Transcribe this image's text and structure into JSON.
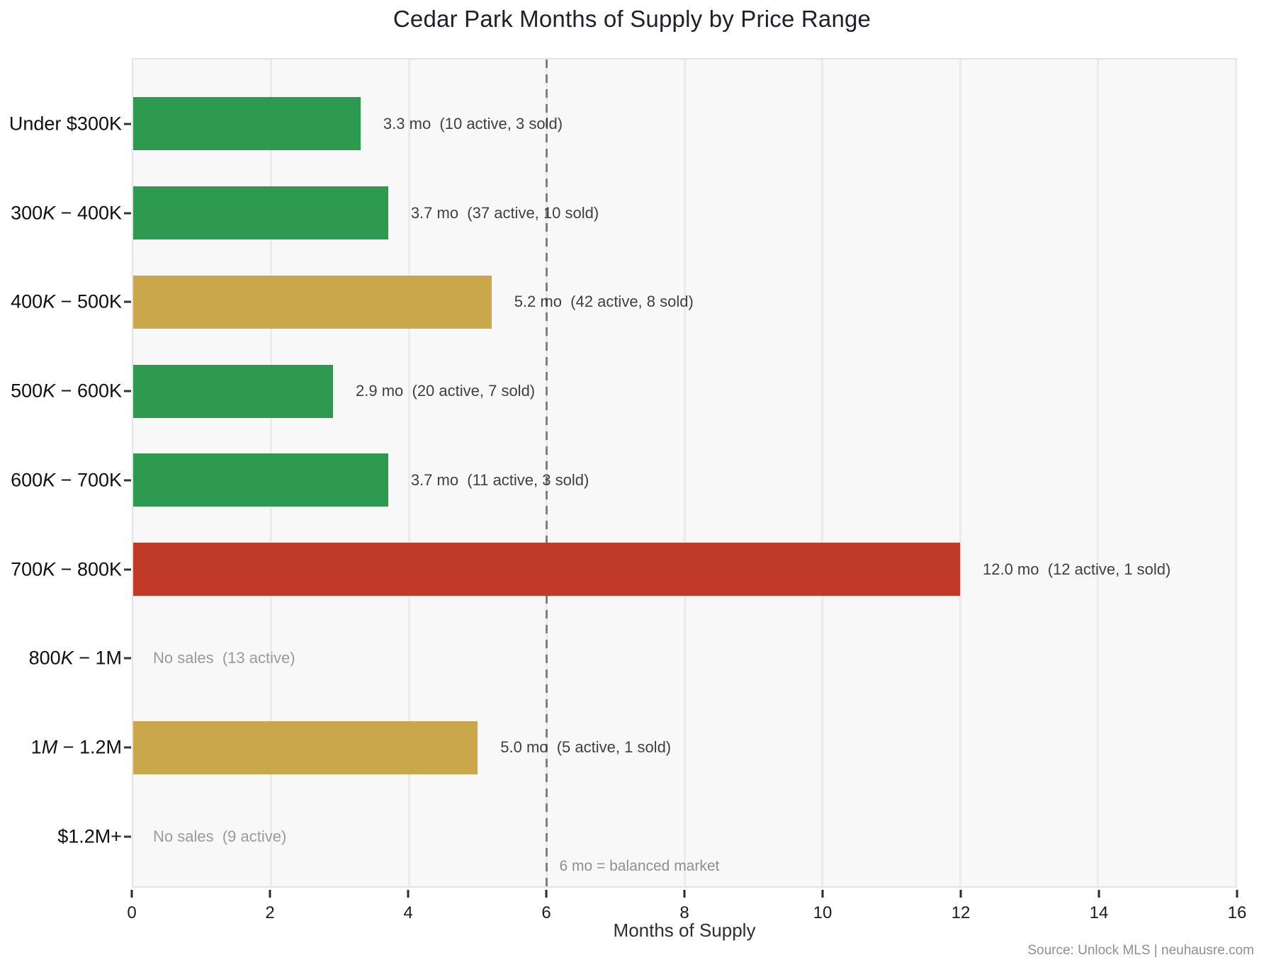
{
  "title": "Cedar Park Months of Supply by Price Range",
  "x_axis": {
    "label": "Months of Supply",
    "ticks": [
      0,
      2,
      4,
      6,
      8,
      10,
      12,
      14,
      16
    ],
    "max": 16
  },
  "reference": {
    "x": 6,
    "note": "6 mo = balanced market"
  },
  "source": "Source: Unlock MLS | neuhausre.com",
  "colors": {
    "green": "#2e9a50",
    "gold": "#c9a74a",
    "red": "#c13a28",
    "annotation_text": "#3f3f3f",
    "no_sales_text": "#9a9a9a",
    "reference_line": "#7f7f7f",
    "panel_background": "#f8f8f9",
    "gridline": "#ebebee"
  },
  "chart_data": {
    "type": "bar",
    "orientation": "horizontal",
    "title": "Cedar Park Months of Supply by Price Range",
    "xlabel": "Months of Supply",
    "xlim": [
      0,
      16
    ],
    "grid": true,
    "reference_line_x": 6,
    "categories": [
      "Under $300K",
      "300K − 400K",
      "400K − 500K",
      "500K − 600K",
      "600K − 700K",
      "700K − 800K",
      "800K − 1M",
      "1M − 1.2M",
      "$1.2M+"
    ],
    "values": [
      3.3,
      3.7,
      5.2,
      2.9,
      3.7,
      12.0,
      null,
      5.0,
      null
    ],
    "active_listings": [
      10,
      37,
      42,
      20,
      11,
      12,
      13,
      5,
      9
    ],
    "sold": [
      3,
      10,
      8,
      7,
      3,
      1,
      0,
      1,
      0
    ],
    "rows": [
      {
        "label": "Under $300K",
        "label_segments": [
          {
            "text": "Under $300K"
          }
        ],
        "value": 3.3,
        "active": 10,
        "sold": 3,
        "annotation": "3.3 mo  (10 active, 3 sold)",
        "color": "green"
      },
      {
        "label": "300K − 400K",
        "label_segments": [
          {
            "text": "300"
          },
          {
            "text": "K",
            "italic": true
          },
          {
            "text": " − "
          },
          {
            "text": "400K"
          }
        ],
        "value": 3.7,
        "active": 37,
        "sold": 10,
        "annotation": "3.7 mo  (37 active, 10 sold)",
        "color": "green"
      },
      {
        "label": "400K − 500K",
        "label_segments": [
          {
            "text": "400"
          },
          {
            "text": "K",
            "italic": true
          },
          {
            "text": " − "
          },
          {
            "text": "500K"
          }
        ],
        "value": 5.2,
        "active": 42,
        "sold": 8,
        "annotation": "5.2 mo  (42 active, 8 sold)",
        "color": "gold"
      },
      {
        "label": "500K − 600K",
        "label_segments": [
          {
            "text": "500"
          },
          {
            "text": "K",
            "italic": true
          },
          {
            "text": " − "
          },
          {
            "text": "600K"
          }
        ],
        "value": 2.9,
        "active": 20,
        "sold": 7,
        "annotation": "2.9 mo  (20 active, 7 sold)",
        "color": "green"
      },
      {
        "label": "600K − 700K",
        "label_segments": [
          {
            "text": "600"
          },
          {
            "text": "K",
            "italic": true
          },
          {
            "text": " − "
          },
          {
            "text": "700K"
          }
        ],
        "value": 3.7,
        "active": 11,
        "sold": 3,
        "annotation": "3.7 mo  (11 active, 3 sold)",
        "color": "green"
      },
      {
        "label": "700K − 800K",
        "label_segments": [
          {
            "text": "700"
          },
          {
            "text": "K",
            "italic": true
          },
          {
            "text": " − "
          },
          {
            "text": "800K"
          }
        ],
        "value": 12.0,
        "active": 12,
        "sold": 1,
        "annotation": "12.0 mo  (12 active, 1 sold)",
        "color": "red"
      },
      {
        "label": "800K − 1M",
        "label_segments": [
          {
            "text": "800"
          },
          {
            "text": "K",
            "italic": true
          },
          {
            "text": " − "
          },
          {
            "text": "1M"
          }
        ],
        "value": null,
        "active": 13,
        "sold": 0,
        "annotation": "No sales  (13 active)",
        "color": null
      },
      {
        "label": "1M − 1.2M",
        "label_segments": [
          {
            "text": "1"
          },
          {
            "text": "M",
            "italic": true
          },
          {
            "text": " − "
          },
          {
            "text": "1.2M"
          }
        ],
        "value": 5.0,
        "active": 5,
        "sold": 1,
        "annotation": "5.0 mo  (5 active, 1 sold)",
        "color": "gold"
      },
      {
        "label": "$1.2M+",
        "label_segments": [
          {
            "text": "$1.2M+"
          }
        ],
        "value": null,
        "active": 9,
        "sold": 0,
        "annotation": "No sales  (9 active)",
        "color": null
      }
    ]
  }
}
